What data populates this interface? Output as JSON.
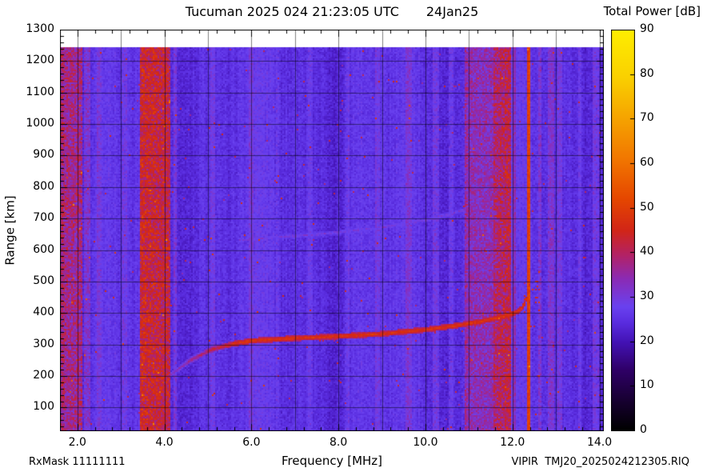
{
  "header": {
    "station_time": "Tucuman 2025 024 21:23:05 UTC",
    "date": "24Jan25",
    "colorbar_title": "Total Power [dB]"
  },
  "footer": {
    "rx_mask": "RxMask 11111111",
    "file_name": "VIPIR  TMJ20_2025024212305.RIQ"
  },
  "chart_data": {
    "type": "heatmap",
    "title": "Tucuman 2025 024 21:23:05 UTC  24Jan25",
    "xlabel": "Frequency [MHz]",
    "ylabel": "Range [km]",
    "xlim": [
      1.6,
      14.1
    ],
    "ylim": [
      25,
      1300
    ],
    "data_top_km": 1245,
    "x_ticks": [
      "2.0",
      "4.0",
      "6.0",
      "8.0",
      "10.0",
      "12.0",
      "14.0"
    ],
    "x_minor_step": 0.4,
    "y_ticks": [
      "100",
      "200",
      "300",
      "400",
      "500",
      "600",
      "700",
      "800",
      "900",
      "1000",
      "1100",
      "1200",
      "1300"
    ],
    "y_minor_step": 20,
    "grid": {
      "x_step_mhz": 1.0,
      "y_step_km": 100
    },
    "colorbar": {
      "label": "Total Power [dB]",
      "min": 0,
      "max": 90,
      "ticks": [
        "0",
        "10",
        "20",
        "30",
        "40",
        "50",
        "60",
        "70",
        "80",
        "90"
      ],
      "position": "right"
    },
    "colormap_stops": [
      [
        0.0,
        "#000000"
      ],
      [
        0.07,
        "#16002e"
      ],
      [
        0.15,
        "#2f0066"
      ],
      [
        0.22,
        "#4312b4"
      ],
      [
        0.27,
        "#5a2de0"
      ],
      [
        0.31,
        "#6a42f0"
      ],
      [
        0.38,
        "#8c2bb4"
      ],
      [
        0.44,
        "#b42264"
      ],
      [
        0.5,
        "#d22618"
      ],
      [
        0.58,
        "#e64800"
      ],
      [
        0.68,
        "#f27800"
      ],
      [
        0.78,
        "#f6a400"
      ],
      [
        0.88,
        "#fad000"
      ],
      [
        1.0,
        "#ffee00"
      ]
    ],
    "background_db": 25,
    "noise_db": 2.2,
    "rfi_bands": [
      {
        "f0": 1.6,
        "f1": 2.1,
        "db": 12,
        "speckle": 12
      },
      {
        "f0": 2.16,
        "f1": 2.3,
        "db": 6,
        "speckle": 8
      },
      {
        "f0": 2.45,
        "f1": 2.55,
        "db": 3,
        "speckle": 4
      },
      {
        "f0": 3.05,
        "f1": 3.15,
        "db": 3,
        "speckle": 4
      },
      {
        "f0": 3.45,
        "f1": 4.15,
        "db": 15,
        "speckle": 13
      },
      {
        "f0": 4.2,
        "f1": 4.3,
        "db": 5,
        "speckle": 6
      },
      {
        "f0": 5.05,
        "f1": 5.15,
        "db": 3,
        "speckle": 3
      },
      {
        "f0": 5.95,
        "f1": 6.05,
        "db": 2.5,
        "speckle": 3
      },
      {
        "f0": 6.55,
        "f1": 6.65,
        "db": 2.5,
        "speckle": 3
      },
      {
        "f0": 7.3,
        "f1": 7.4,
        "db": 2.5,
        "speckle": 3
      },
      {
        "f0": 8.15,
        "f1": 8.25,
        "db": 2.5,
        "speckle": 3
      },
      {
        "f0": 8.85,
        "f1": 8.95,
        "db": 3,
        "speckle": 3
      },
      {
        "f0": 9.55,
        "f1": 9.7,
        "db": 3.5,
        "speckle": 4
      },
      {
        "f0": 10.15,
        "f1": 10.3,
        "db": 4,
        "speckle": 5
      },
      {
        "f0": 10.55,
        "f1": 10.65,
        "db": 3,
        "speckle": 4
      },
      {
        "f0": 10.9,
        "f1": 11.55,
        "db": 8,
        "speckle": 9
      },
      {
        "f0": 11.55,
        "f1": 11.97,
        "db": 12,
        "speckle": 12
      },
      {
        "f0": 12.0,
        "f1": 12.08,
        "db": 5,
        "speckle": 5
      },
      {
        "f0": 12.32,
        "f1": 12.4,
        "db": 24,
        "speckle": 4
      },
      {
        "f0": 12.58,
        "f1": 12.66,
        "db": 6,
        "speckle": 6
      },
      {
        "f0": 12.82,
        "f1": 12.95,
        "db": 5,
        "speckle": 5
      },
      {
        "f0": 13.05,
        "f1": 13.15,
        "db": 4,
        "speckle": 4
      },
      {
        "f0": 13.5,
        "f1": 13.6,
        "db": 3,
        "speckle": 3
      },
      {
        "f0": 13.85,
        "f1": 13.98,
        "db": 5,
        "speckle": 5
      }
    ],
    "traces": [
      {
        "name": "F-region echo trace",
        "db": 49,
        "width_km": 9,
        "fade_below_f": 5.8,
        "points": [
          [
            4.05,
            195
          ],
          [
            4.6,
            250
          ],
          [
            5.1,
            285
          ],
          [
            5.6,
            303
          ],
          [
            6.0,
            312
          ],
          [
            7.0,
            320
          ],
          [
            8.0,
            326
          ],
          [
            9.0,
            334
          ],
          [
            10.0,
            347
          ],
          [
            10.7,
            360
          ],
          [
            11.3,
            374
          ],
          [
            11.8,
            389
          ],
          [
            12.05,
            400
          ],
          [
            12.2,
            413
          ],
          [
            12.3,
            435
          ],
          [
            12.36,
            470
          ],
          [
            12.4,
            530
          ]
        ]
      },
      {
        "name": "second-reflection faint trace",
        "db": 31,
        "width_km": 10,
        "points": [
          [
            5.7,
            630
          ],
          [
            6.5,
            640
          ],
          [
            7.5,
            650
          ],
          [
            8.0,
            656
          ],
          [
            9.0,
            672
          ],
          [
            10.0,
            695
          ],
          [
            10.5,
            712
          ],
          [
            11.0,
            732
          ],
          [
            11.5,
            760
          ]
        ]
      }
    ],
    "asymptote_speckle": {
      "f0": 12.25,
      "f1": 12.62,
      "km0": 400,
      "km1": 505,
      "db": 46,
      "prob": 0.1
    }
  }
}
